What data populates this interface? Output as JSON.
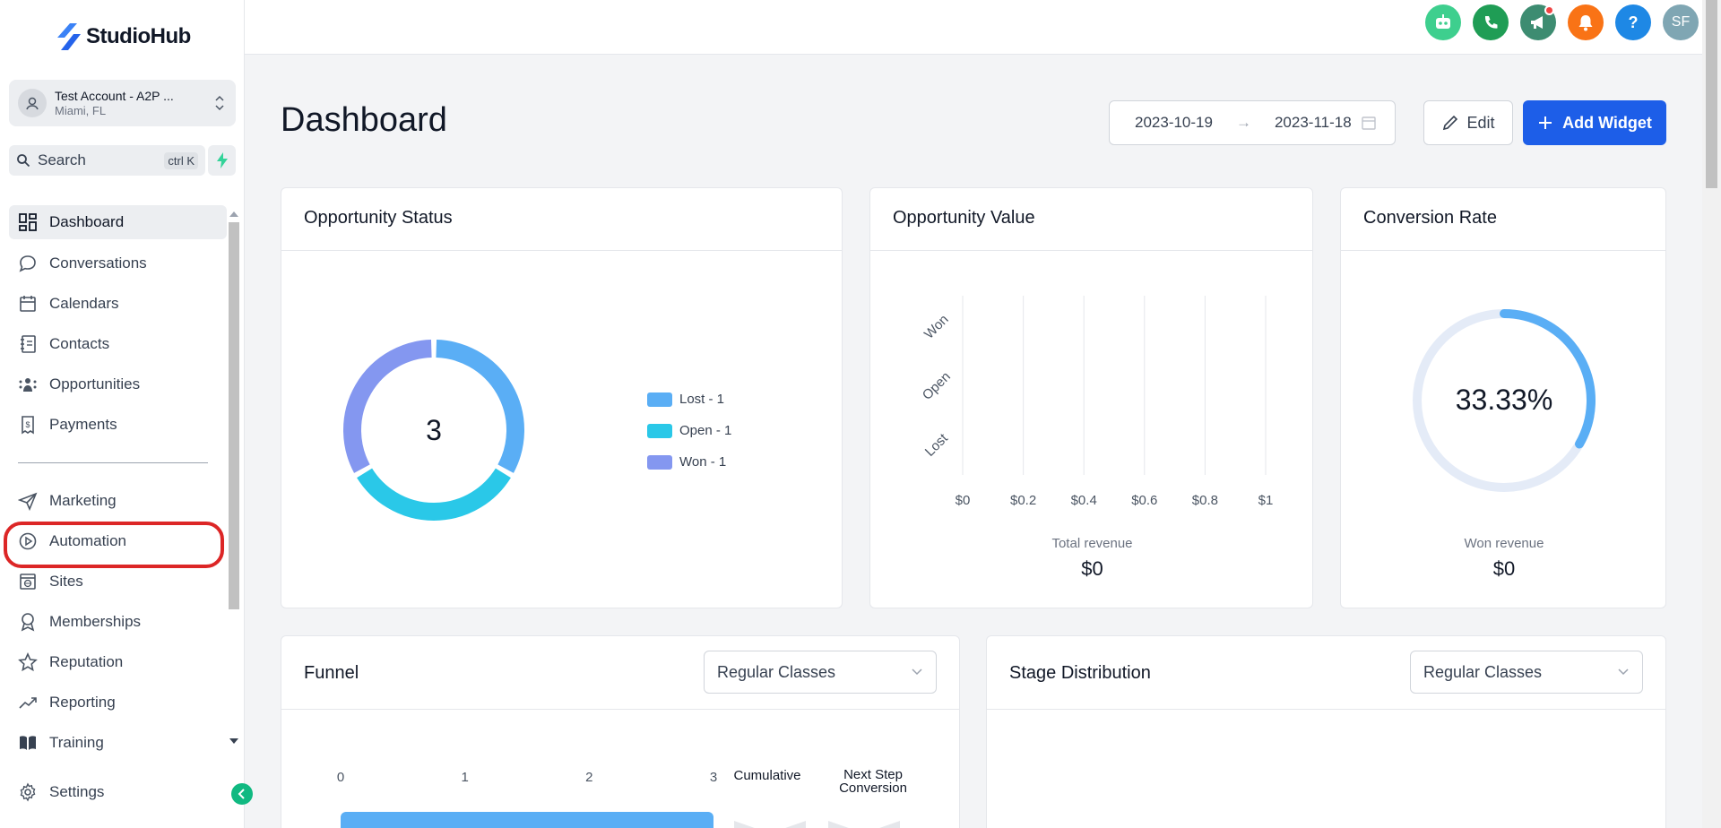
{
  "brand": {
    "name": "StudioHub"
  },
  "account": {
    "name": "Test Account - A2P ...",
    "location": "Miami, FL"
  },
  "search": {
    "placeholder": "Search",
    "shortcut": "ctrl K"
  },
  "sidebar": {
    "items": [
      {
        "label": "Dashboard",
        "icon": "dashboard-icon"
      },
      {
        "label": "Conversations",
        "icon": "chat-bubble-icon"
      },
      {
        "label": "Calendars",
        "icon": "calendar-icon"
      },
      {
        "label": "Contacts",
        "icon": "contacts-book-icon"
      },
      {
        "label": "Opportunities",
        "icon": "opportunities-icon"
      },
      {
        "label": "Payments",
        "icon": "payments-receipt-icon"
      },
      {
        "label": "Marketing",
        "icon": "paper-plane-icon"
      },
      {
        "label": "Automation",
        "icon": "automation-play-icon"
      },
      {
        "label": "Sites",
        "icon": "sites-globe-icon"
      },
      {
        "label": "Memberships",
        "icon": "award-badge-icon"
      },
      {
        "label": "Reputation",
        "icon": "star-icon"
      },
      {
        "label": "Reporting",
        "icon": "trend-chart-icon"
      },
      {
        "label": "Training",
        "icon": "book-icon"
      }
    ],
    "settings_label": "Settings"
  },
  "topbar": {
    "avatar_initials": "SF",
    "help_label": "?"
  },
  "page": {
    "title": "Dashboard"
  },
  "date_range": {
    "start": "2023-10-19",
    "end": "2023-11-18"
  },
  "toolbar": {
    "edit_label": "Edit",
    "add_widget_label": "Add Widget"
  },
  "colors": {
    "primary": "#1d5ee8",
    "lost": "#5aaef5",
    "open": "#2ac8e8",
    "won": "#8497f0",
    "highlight": "#dc2626"
  },
  "widgets": {
    "opportunity_status": {
      "title": "Opportunity Status",
      "total": "3"
    },
    "opportunity_value": {
      "title": "Opportunity Value",
      "footer_label": "Total revenue",
      "footer_value": "$0"
    },
    "conversion_rate": {
      "title": "Conversion Rate",
      "value": "33.33%",
      "footer_label": "Won revenue",
      "footer_value": "$0"
    },
    "funnel": {
      "title": "Funnel",
      "pipeline": "Regular Classes",
      "col_cumulative": "Cumulative",
      "col_next_step": "Next Step Conversion"
    },
    "stage_distribution": {
      "title": "Stage Distribution",
      "pipeline": "Regular Classes"
    }
  },
  "chart_data": [
    {
      "type": "pie",
      "title": "Opportunity Status",
      "categories": [
        "Lost",
        "Open",
        "Won"
      ],
      "values": [
        1,
        1,
        1
      ],
      "legend": [
        "Lost - 1",
        "Open - 1",
        "Won - 1"
      ],
      "center_label": "3"
    },
    {
      "type": "bar",
      "orientation": "horizontal",
      "title": "Opportunity Value",
      "categories": [
        "Won",
        "Open",
        "Lost"
      ],
      "values": [
        0,
        0,
        0
      ],
      "x_ticks": [
        "$0",
        "$0.2",
        "$0.4",
        "$0.6",
        "$0.8",
        "$1"
      ],
      "xlim": [
        0,
        1
      ]
    },
    {
      "type": "pie",
      "title": "Conversion Rate",
      "values": [
        33.33,
        66.67
      ],
      "center_label": "33.33%"
    },
    {
      "type": "bar",
      "orientation": "horizontal",
      "title": "Funnel",
      "x_ticks": [
        "0",
        "1",
        "2",
        "3"
      ],
      "xlim": [
        0,
        3
      ],
      "values": [
        3
      ]
    }
  ]
}
